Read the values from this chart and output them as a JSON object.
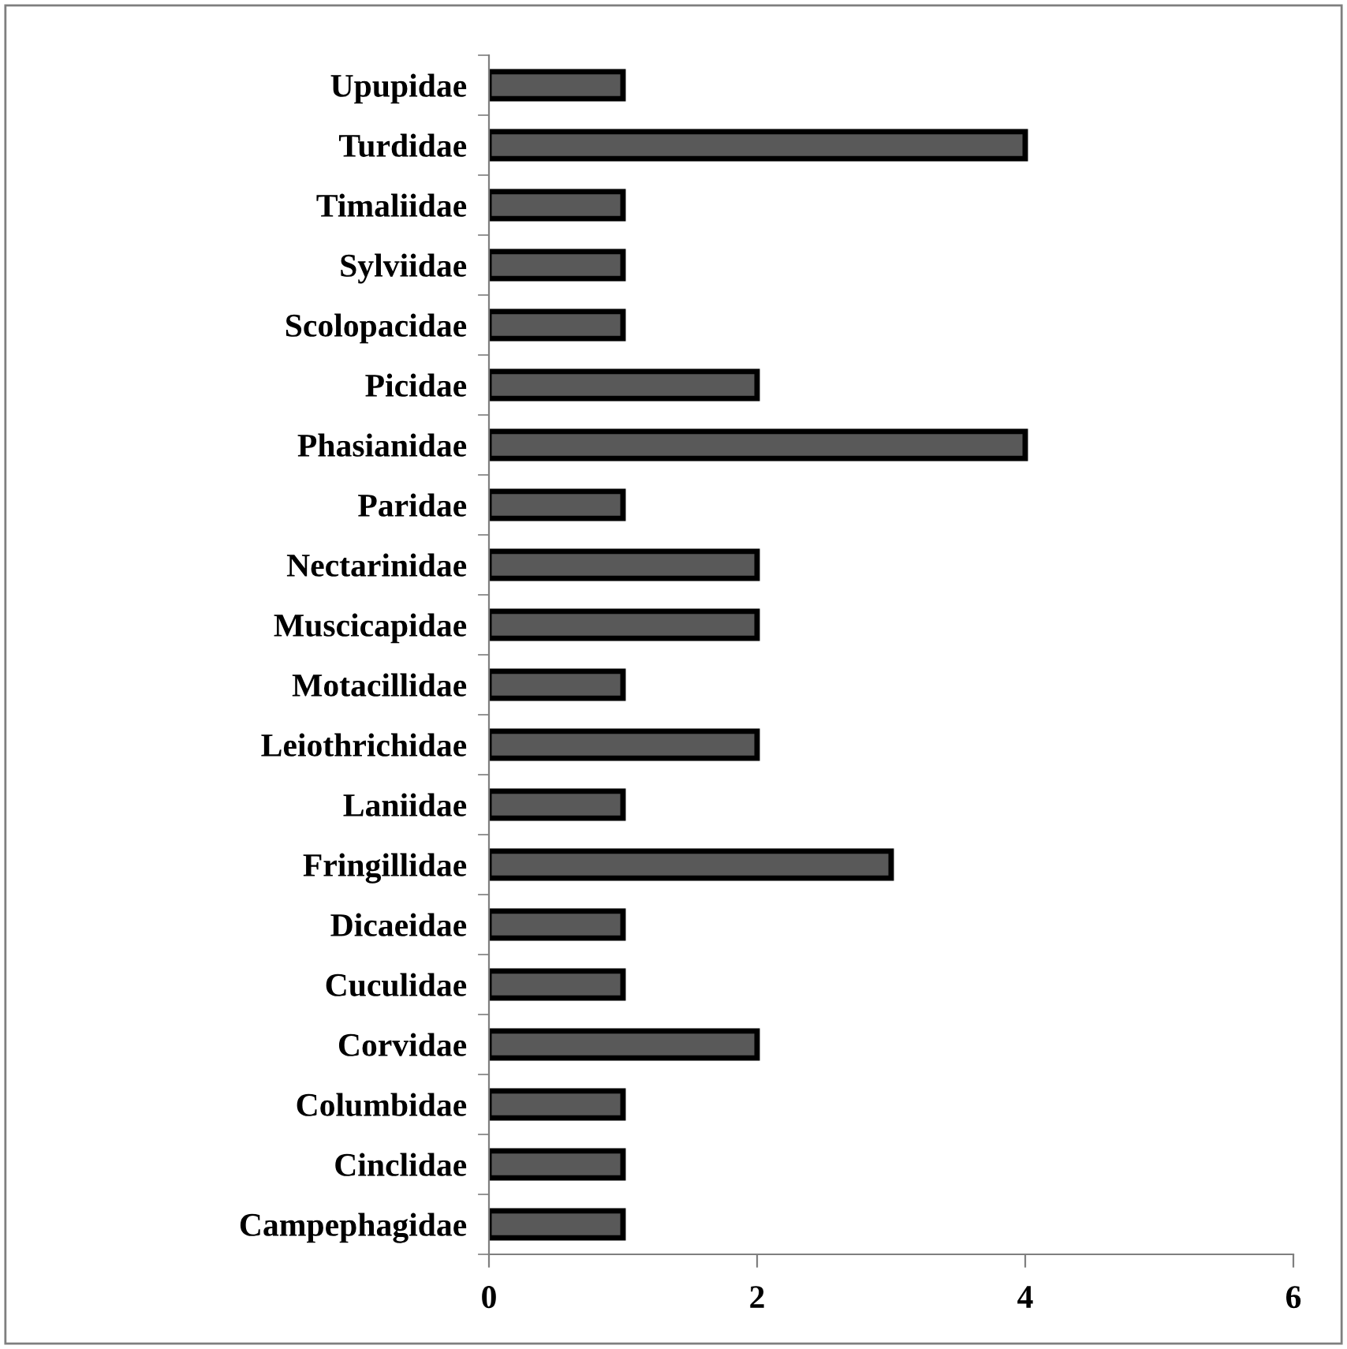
{
  "chart_data": {
    "type": "bar",
    "orientation": "horizontal",
    "categories": [
      "Upupidae",
      "Turdidae",
      "Timaliidae",
      "Sylviidae",
      "Scolopacidae",
      "Picidae",
      "Phasianidae",
      "Paridae",
      "Nectarinidae",
      "Muscicapidae",
      "Motacillidae",
      "Leiothrichidae",
      "Laniidae",
      "Fringillidae",
      "Dicaeidae",
      "Cuculidae",
      "Corvidae",
      "Columbidae",
      "Cinclidae",
      "Campephagidae"
    ],
    "values": [
      1,
      4,
      1,
      1,
      1,
      2,
      4,
      1,
      2,
      2,
      1,
      2,
      1,
      3,
      1,
      1,
      2,
      1,
      1,
      1
    ],
    "color": "#595959",
    "xlim": [
      0,
      6
    ],
    "xticks": [
      0,
      2,
      4,
      6
    ],
    "grid": false,
    "legend": false
  }
}
